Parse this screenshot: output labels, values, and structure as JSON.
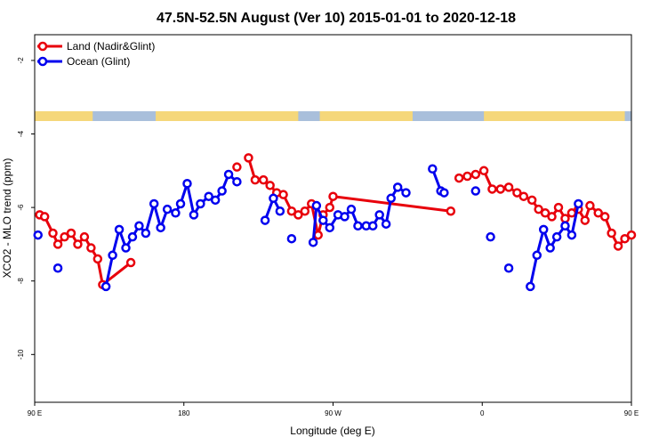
{
  "chart_data": {
    "type": "line",
    "title": "47.5N-52.5N August (Ver 10)   2015-01-01 to 2020-12-18",
    "xlabel": "Longitude (deg E)",
    "ylabel": "XCO2 - MLO trend (ppm)",
    "xlim": [
      90,
      450
    ],
    "ylim": [
      -11.3,
      -1.3
    ],
    "x_ticks": [
      {
        "value": 90,
        "label": "90 E"
      },
      {
        "value": 180,
        "label": "180"
      },
      {
        "value": 270,
        "label": "90 W"
      },
      {
        "value": 360,
        "label": "0"
      },
      {
        "value": 450,
        "label": "90 E"
      },
      {
        "value": 540,
        "label": "180"
      }
    ],
    "y_ticks": [
      {
        "value": -2,
        "label": "-2"
      },
      {
        "value": -4,
        "label": "-4"
      },
      {
        "value": -6,
        "label": "-6"
      },
      {
        "value": -8,
        "label": "-8"
      },
      {
        "value": -10,
        "label": "-10"
      }
    ],
    "legend_position": "top-left",
    "land_ocean_strip": {
      "land_color": "#f5d77a",
      "ocean_color": "#a9bfdb"
    },
    "series": [
      {
        "name": "Land (Nadir&Glint)",
        "color": "#e8000b",
        "points": [
          [
            93,
            -6.2
          ],
          [
            96,
            -6.25
          ],
          [
            101,
            -6.7
          ],
          [
            104,
            -7.0
          ],
          [
            108,
            -6.8
          ],
          [
            112,
            -6.7
          ],
          [
            116,
            -7.0
          ],
          [
            120,
            -6.8
          ],
          [
            124,
            -7.1
          ],
          [
            128,
            -7.4
          ],
          [
            131,
            -8.1
          ],
          [
            148,
            -7.5
          ],
          [
            212,
            -4.9
          ],
          [
            219,
            -4.65
          ],
          [
            223,
            -5.25
          ],
          [
            228,
            -5.25
          ],
          [
            232,
            -5.4
          ],
          [
            236,
            -5.6
          ],
          [
            240,
            -5.65
          ],
          [
            245,
            -6.1
          ],
          [
            249,
            -6.2
          ],
          [
            253,
            -6.1
          ],
          [
            257,
            -5.9
          ],
          [
            261,
            -6.75
          ],
          [
            264,
            -6.2
          ],
          [
            268,
            -6.0
          ],
          [
            270,
            -5.7
          ],
          [
            341,
            -6.1
          ],
          [
            346,
            -5.2
          ],
          [
            351,
            -5.15
          ],
          [
            356,
            -5.1
          ],
          [
            361,
            -5.0
          ],
          [
            366,
            -5.5
          ],
          [
            371,
            -5.5
          ],
          [
            376,
            -5.45
          ],
          [
            381,
            -5.6
          ],
          [
            385,
            -5.7
          ],
          [
            390,
            -5.8
          ],
          [
            394,
            -6.05
          ],
          [
            398,
            -6.15
          ],
          [
            402,
            -6.25
          ],
          [
            406,
            -6.0
          ],
          [
            410,
            -6.3
          ],
          [
            414,
            -6.15
          ],
          [
            418,
            -6.05
          ],
          [
            422,
            -6.35
          ],
          [
            425,
            -5.95
          ],
          [
            430,
            -6.15
          ],
          [
            434,
            -6.25
          ],
          [
            438,
            -6.7
          ],
          [
            442,
            -7.05
          ],
          [
            446,
            -6.85
          ],
          [
            450,
            -6.75
          ]
        ],
        "gaps_after": [
          11,
          12,
          27
        ]
      },
      {
        "name": "Ocean (Glint)",
        "color": "#0000ee",
        "points": [
          [
            92,
            -6.75
          ],
          [
            104,
            -7.65
          ],
          [
            133,
            -8.15
          ],
          [
            137,
            -7.3
          ],
          [
            141,
            -6.6
          ],
          [
            145,
            -7.1
          ],
          [
            149,
            -6.8
          ],
          [
            153,
            -6.5
          ],
          [
            157,
            -6.7
          ],
          [
            162,
            -5.9
          ],
          [
            166,
            -6.55
          ],
          [
            170,
            -6.05
          ],
          [
            175,
            -6.15
          ],
          [
            178,
            -5.9
          ],
          [
            182,
            -5.35
          ],
          [
            186,
            -6.2
          ],
          [
            190,
            -5.9
          ],
          [
            195,
            -5.7
          ],
          [
            199,
            -5.8
          ],
          [
            203,
            -5.55
          ],
          [
            207,
            -5.1
          ],
          [
            212,
            -5.3
          ],
          [
            229,
            -6.35
          ],
          [
            234,
            -5.75
          ],
          [
            238,
            -6.1
          ],
          [
            245,
            -6.85
          ],
          [
            258,
            -6.95
          ],
          [
            260,
            -5.95
          ],
          [
            264,
            -6.35
          ],
          [
            268,
            -6.55
          ],
          [
            273,
            -6.2
          ],
          [
            277,
            -6.25
          ],
          [
            281,
            -6.05
          ],
          [
            285,
            -6.5
          ],
          [
            290,
            -6.5
          ],
          [
            294,
            -6.5
          ],
          [
            298,
            -6.2
          ],
          [
            302,
            -6.45
          ],
          [
            305,
            -5.75
          ],
          [
            309,
            -5.45
          ],
          [
            314,
            -5.6
          ],
          [
            330,
            -4.95
          ],
          [
            335,
            -5.55
          ],
          [
            337,
            -5.6
          ],
          [
            356,
            -5.55
          ],
          [
            365,
            -6.8
          ],
          [
            376,
            -7.65
          ],
          [
            389,
            -8.15
          ],
          [
            393,
            -7.3
          ],
          [
            397,
            -6.6
          ],
          [
            401,
            -7.1
          ],
          [
            405,
            -6.8
          ],
          [
            410,
            -6.5
          ],
          [
            414,
            -6.75
          ],
          [
            418,
            -5.9
          ]
        ],
        "gaps_after": [
          0,
          1,
          21,
          24,
          25,
          40,
          43,
          44,
          45,
          46
        ]
      }
    ]
  }
}
